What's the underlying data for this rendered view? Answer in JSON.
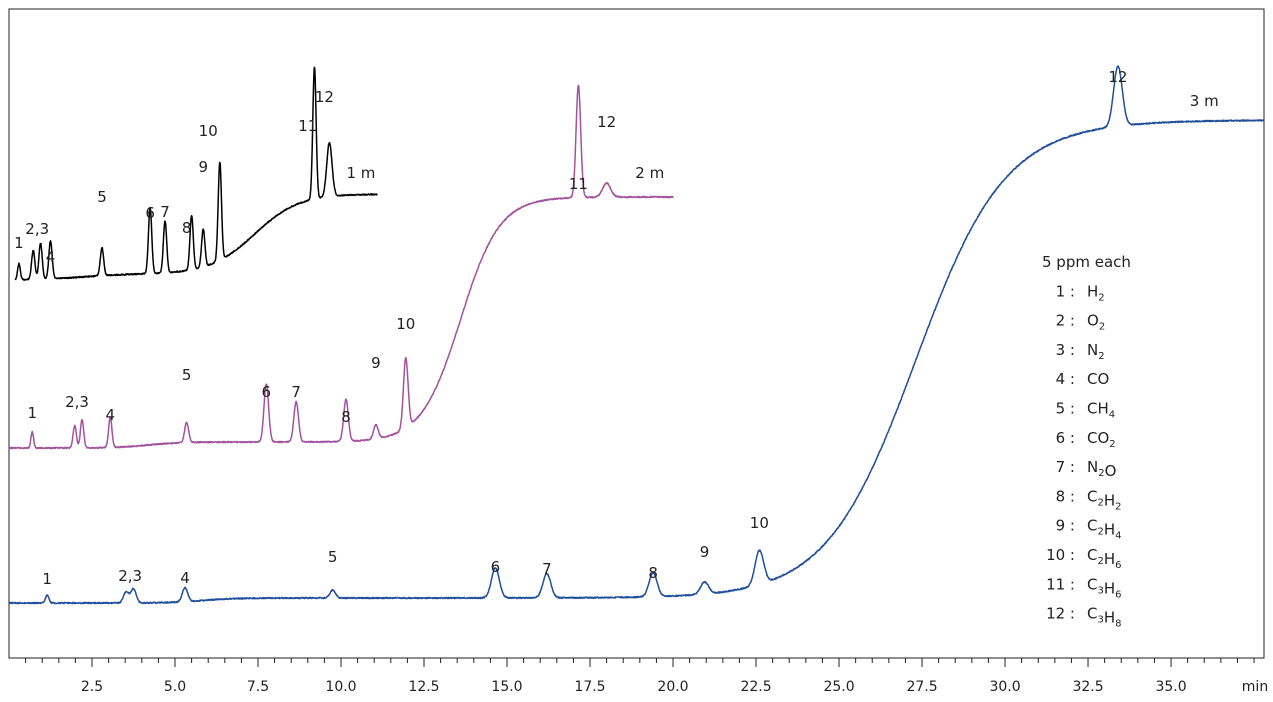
{
  "chart_data": {
    "type": "line",
    "title": "",
    "xlabel": "min",
    "ylabel": "",
    "xlim": [
      0,
      37.8
    ],
    "x_ticks": [
      "2.5",
      "5.0",
      "7.5",
      "10.0",
      "12.5",
      "15.0",
      "17.5",
      "20.0",
      "22.5",
      "25.0",
      "27.5",
      "30.0",
      "32.5",
      "35.0"
    ],
    "x_tick_values": [
      2.5,
      5.0,
      7.5,
      10.0,
      12.5,
      15.0,
      17.5,
      20.0,
      22.5,
      25.0,
      27.5,
      30.0,
      32.5,
      35.0
    ],
    "grid": false,
    "colors": {
      "1 m": "#000000",
      "2 m": "#a3529e",
      "3 m": "#1f4e9a",
      "axis": "#231f20"
    },
    "series": [
      {
        "name": "1 m",
        "end_x": 11.1,
        "peaks": [
          {
            "label": "1",
            "x": 0.3
          },
          {
            "label": "2,3",
            "x": 0.85
          },
          {
            "label": "4",
            "x": 1.25
          },
          {
            "label": "5",
            "x": 2.8
          },
          {
            "label": "6",
            "x": 4.25
          },
          {
            "label": "7",
            "x": 4.7
          },
          {
            "label": "8",
            "x": 5.5
          },
          {
            "label": "9",
            "x": 5.85
          },
          {
            "label": "10",
            "x": 6.35
          },
          {
            "label": "11",
            "x": 9.2
          },
          {
            "label": "12",
            "x": 9.65
          }
        ]
      },
      {
        "name": "2 m",
        "end_x": 20.0,
        "peaks": [
          {
            "label": "1",
            "x": 0.7
          },
          {
            "label": "2,3",
            "x": 2.1
          },
          {
            "label": "4",
            "x": 3.05
          },
          {
            "label": "5",
            "x": 5.35
          },
          {
            "label": "6",
            "x": 7.75
          },
          {
            "label": "7",
            "x": 8.65
          },
          {
            "label": "8",
            "x": 10.15
          },
          {
            "label": "9",
            "x": 11.05
          },
          {
            "label": "10",
            "x": 11.95
          },
          {
            "label": "11",
            "x": 17.15
          },
          {
            "label": "12",
            "x": 18.0
          }
        ]
      },
      {
        "name": "3 m",
        "end_x": 37.8,
        "peaks": [
          {
            "label": "1",
            "x": 1.15
          },
          {
            "label": "2,3",
            "x": 3.65
          },
          {
            "label": "4",
            "x": 5.3
          },
          {
            "label": "5",
            "x": 9.75
          },
          {
            "label": "6",
            "x": 14.65
          },
          {
            "label": "7",
            "x": 16.2
          },
          {
            "label": "8",
            "x": 19.4
          },
          {
            "label": "9",
            "x": 20.95
          },
          {
            "label": "10",
            "x": 22.6
          },
          {
            "label": "12",
            "x": 33.4
          }
        ]
      }
    ],
    "legend": {
      "placement": "right",
      "title": "5 ppm each",
      "items": [
        {
          "num": "1 :",
          "parts": [
            [
              "H",
              ""
            ],
            [
              "2",
              "sub"
            ]
          ]
        },
        {
          "num": "2 :",
          "parts": [
            [
              "O",
              ""
            ],
            [
              "2",
              "sub"
            ]
          ]
        },
        {
          "num": "3 :",
          "parts": [
            [
              "N",
              ""
            ],
            [
              "2",
              "sub"
            ]
          ]
        },
        {
          "num": "4 :",
          "parts": [
            [
              "CO",
              ""
            ]
          ]
        },
        {
          "num": "5 :",
          "parts": [
            [
              "CH",
              ""
            ],
            [
              "4",
              "sub"
            ]
          ]
        },
        {
          "num": "6 :",
          "parts": [
            [
              "CO",
              ""
            ],
            [
              "2",
              "sub"
            ]
          ]
        },
        {
          "num": "7 :",
          "parts": [
            [
              "N",
              ""
            ],
            [
              "2",
              "sub"
            ],
            [
              "O",
              ""
            ]
          ]
        },
        {
          "num": "8 :",
          "parts": [
            [
              "C",
              ""
            ],
            [
              "2",
              "sub"
            ],
            [
              "H",
              ""
            ],
            [
              "2",
              "sub"
            ]
          ]
        },
        {
          "num": "9 :",
          "parts": [
            [
              "C",
              ""
            ],
            [
              "2",
              "sub"
            ],
            [
              "H",
              ""
            ],
            [
              "4",
              "sub"
            ]
          ]
        },
        {
          "num": "10 :",
          "parts": [
            [
              "C",
              ""
            ],
            [
              "2",
              "sub"
            ],
            [
              "H",
              ""
            ],
            [
              "6",
              "sub"
            ]
          ]
        },
        {
          "num": "11 :",
          "parts": [
            [
              "C",
              ""
            ],
            [
              "3",
              "sub"
            ],
            [
              "H",
              ""
            ],
            [
              "6",
              "sub"
            ]
          ]
        },
        {
          "num": "12 :",
          "parts": [
            [
              "C",
              ""
            ],
            [
              "3",
              "sub"
            ],
            [
              "H",
              ""
            ],
            [
              "8",
              "sub"
            ]
          ]
        }
      ]
    }
  }
}
